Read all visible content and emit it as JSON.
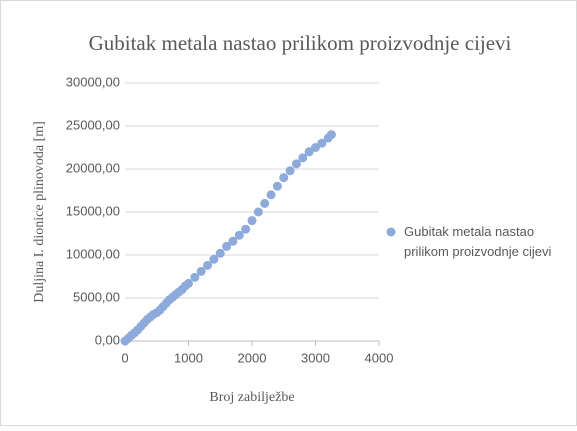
{
  "chart_data": {
    "type": "scatter",
    "title": "Gubitak metala nastao prilikom proizvodnje cijevi",
    "x_label": "Broj zabilježbe",
    "y_label": "Duljina  I. dionice plinovoda [m]",
    "series": [
      {
        "name": "Gubitak metala nastao prilikom proizvodnje cijevi",
        "color": "#8eaadb",
        "x": [
          0,
          50,
          100,
          150,
          200,
          250,
          300,
          350,
          400,
          450,
          500,
          550,
          600,
          650,
          700,
          750,
          800,
          850,
          900,
          950,
          1000,
          1100,
          1200,
          1300,
          1400,
          1500,
          1600,
          1700,
          1800,
          1900,
          2000,
          2100,
          2200,
          2300,
          2400,
          2500,
          2600,
          2700,
          2800,
          2900,
          3000,
          3100,
          3200,
          3250
        ],
        "values": [
          0,
          300,
          650,
          950,
          1300,
          1700,
          2100,
          2500,
          2800,
          3100,
          3300,
          3600,
          4000,
          4400,
          4800,
          5100,
          5400,
          5700,
          6000,
          6400,
          6700,
          7400,
          8100,
          8800,
          9500,
          10200,
          11000,
          11600,
          12300,
          13000,
          14000,
          15000,
          16000,
          17000,
          18000,
          19000,
          19800,
          20600,
          21300,
          22000,
          22500,
          23000,
          23600,
          24000
        ]
      }
    ],
    "xlim": [
      0,
      4000
    ],
    "xticks": [
      0,
      1000,
      2000,
      3000,
      4000
    ],
    "ylim": [
      0,
      30000
    ],
    "yticks": [
      {
        "value": 0,
        "label": "0,00"
      },
      {
        "value": 5000,
        "label": "5000,00"
      },
      {
        "value": 10000,
        "label": "10000,00"
      },
      {
        "value": 15000,
        "label": "15000,00"
      },
      {
        "value": 20000,
        "label": "20000,00"
      },
      {
        "value": 25000,
        "label": "25000,00"
      },
      {
        "value": 30000,
        "label": "30000,00"
      }
    ],
    "grid": true,
    "legend": "right"
  }
}
